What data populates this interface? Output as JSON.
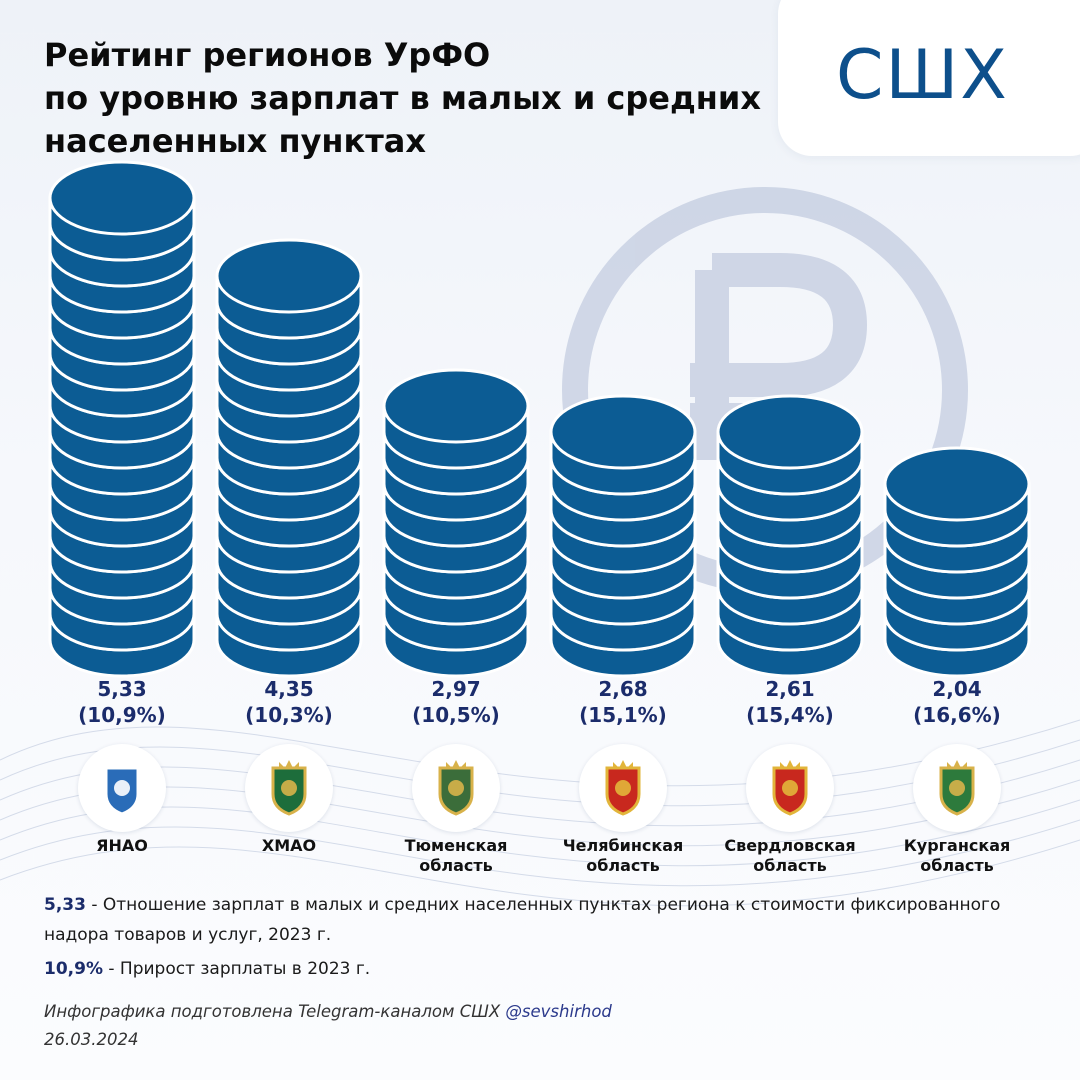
{
  "title_lines": [
    "Рейтинг регионов УрФО",
    "по уровню зарплат в малых и средних",
    "населенных пунктах"
  ],
  "logo_text": "СШХ",
  "chart_data": {
    "type": "bar",
    "title": "Рейтинг регионов УрФО по уровню зарплат в малых и средних населенных пунктах",
    "categories": [
      "ЯНАО",
      "ХМАО",
      "Тюменская область",
      "Челябинская область",
      "Свердловская область",
      "Курганская область"
    ],
    "series": [
      {
        "values": [
          5.33,
          4.35,
          2.97,
          2.68,
          2.61,
          2.04
        ]
      }
    ],
    "growth_labels": [
      "(10,9%)",
      "(10,3%)",
      "(10,5%)",
      "(15,1%)",
      "(15,4%)",
      "(16,6%)"
    ],
    "value_labels": [
      "5,33",
      "4,35",
      "2,97",
      "2,68",
      "2,61",
      "2,04"
    ],
    "growth_percent": [
      10.9,
      10.3,
      10.5,
      15.1,
      15.4,
      16.6
    ],
    "bar_style": "coin stacks",
    "bar_color": "#0c5c94",
    "ylim": [
      0,
      5.33
    ],
    "xlabel": "",
    "ylabel": "",
    "grid": false,
    "legend": "none"
  },
  "regions": [
    {
      "name_lines": [
        "ЯНАО"
      ],
      "emblem": "yanao-emblem-icon"
    },
    {
      "name_lines": [
        "ХМАО"
      ],
      "emblem": "hmao-emblem-icon"
    },
    {
      "name_lines": [
        "Тюменская",
        "область"
      ],
      "emblem": "tyumen-emblem-icon"
    },
    {
      "name_lines": [
        "Челябинская",
        "область"
      ],
      "emblem": "chelyabinsk-emblem-icon"
    },
    {
      "name_lines": [
        "Свердловская",
        "область"
      ],
      "emblem": "sverdlovsk-emblem-icon"
    },
    {
      "name_lines": [
        "Курганская",
        "область"
      ],
      "emblem": "kurgan-emblem-icon"
    }
  ],
  "notes": [
    {
      "key": "5,33",
      "text": " - Отношение зарплат в малых и средних населенных пунктах региона к стоимости фиксированного надора товаров и услуг, 2023 г."
    },
    {
      "key": "10,9%",
      "text": " - Прирост зарплаты в 2023 г."
    }
  ],
  "credit": {
    "text": "Инфографика подготовлена Telegram-каналом СШХ ",
    "handle": "@sevshirhod",
    "date": "26.03.2024"
  },
  "colors": {
    "coin": "#0c5c94",
    "coin_edge": "#ffffff",
    "value_text": "#1b2c6b",
    "ruble_watermark": "#c5cde0",
    "logo": "#0d4f8b"
  },
  "icons": {
    "background": "ruble-watermark-icon"
  }
}
